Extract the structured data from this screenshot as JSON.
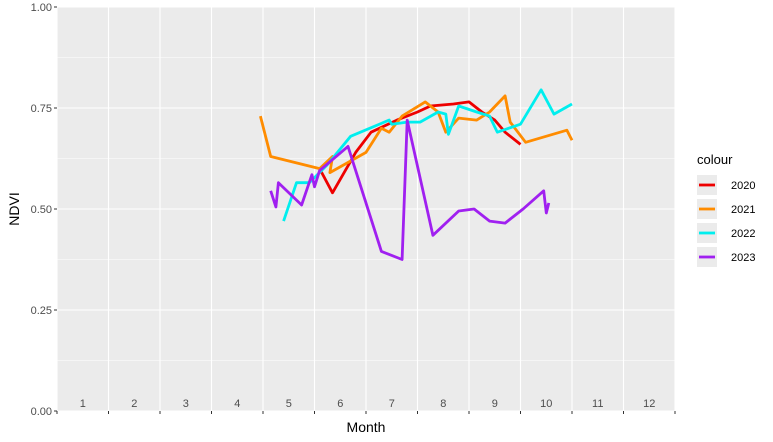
{
  "chart_data": {
    "type": "line",
    "title": "",
    "xlabel": "Month",
    "ylabel": "NDVI",
    "xlim": [
      0.5,
      12.5
    ],
    "ylim": [
      0,
      1
    ],
    "x_ticks": [
      "1",
      "2",
      "3",
      "4",
      "5",
      "6",
      "7",
      "8",
      "9",
      "10",
      "11",
      "12"
    ],
    "y_ticks": [
      "0.00",
      "0.25",
      "0.50",
      "0.75",
      "1.00"
    ],
    "grid": true,
    "legend": {
      "title": "colour",
      "position": "right"
    },
    "series": [
      {
        "name": "2020",
        "color": "#ee0000",
        "points": [
          [
            5.6,
            0.6
          ],
          [
            5.85,
            0.54
          ],
          [
            6.3,
            0.64
          ],
          [
            6.6,
            0.69
          ],
          [
            7.1,
            0.72
          ],
          [
            7.5,
            0.74
          ],
          [
            7.75,
            0.755
          ],
          [
            8.2,
            0.76
          ],
          [
            8.5,
            0.765
          ],
          [
            8.75,
            0.74
          ],
          [
            9.0,
            0.72
          ],
          [
            9.2,
            0.69
          ],
          [
            9.5,
            0.66
          ]
        ]
      },
      {
        "name": "2021",
        "color": "#ff8c00",
        "points": [
          [
            4.45,
            0.73
          ],
          [
            4.65,
            0.63
          ],
          [
            5.6,
            0.6
          ],
          [
            5.85,
            0.63
          ],
          [
            5.8,
            0.59
          ],
          [
            6.5,
            0.64
          ],
          [
            6.8,
            0.7
          ],
          [
            6.95,
            0.69
          ],
          [
            7.2,
            0.73
          ],
          [
            7.65,
            0.765
          ],
          [
            7.9,
            0.74
          ],
          [
            8.05,
            0.69
          ],
          [
            8.3,
            0.725
          ],
          [
            8.65,
            0.72
          ],
          [
            8.9,
            0.74
          ],
          [
            9.2,
            0.78
          ],
          [
            9.3,
            0.715
          ],
          [
            9.6,
            0.665
          ],
          [
            10.4,
            0.695
          ],
          [
            10.5,
            0.67
          ]
        ]
      },
      {
        "name": "2022",
        "color": "#00eeee",
        "points": [
          [
            4.9,
            0.47
          ],
          [
            5.15,
            0.565
          ],
          [
            5.4,
            0.565
          ],
          [
            5.75,
            0.61
          ],
          [
            6.2,
            0.68
          ],
          [
            6.95,
            0.72
          ],
          [
            7.0,
            0.71
          ],
          [
            7.3,
            0.715
          ],
          [
            7.55,
            0.715
          ],
          [
            7.9,
            0.74
          ],
          [
            8.05,
            0.735
          ],
          [
            8.1,
            0.685
          ],
          [
            8.3,
            0.755
          ],
          [
            8.65,
            0.74
          ],
          [
            8.9,
            0.73
          ],
          [
            9.05,
            0.69
          ],
          [
            9.5,
            0.71
          ],
          [
            9.9,
            0.795
          ],
          [
            10.15,
            0.735
          ],
          [
            10.5,
            0.76
          ]
        ]
      },
      {
        "name": "2023",
        "color": "#a020f0",
        "points": [
          [
            4.65,
            0.545
          ],
          [
            4.75,
            0.505
          ],
          [
            4.8,
            0.565
          ],
          [
            5.25,
            0.51
          ],
          [
            5.45,
            0.585
          ],
          [
            5.5,
            0.555
          ],
          [
            5.6,
            0.595
          ],
          [
            6.15,
            0.655
          ],
          [
            6.8,
            0.395
          ],
          [
            7.2,
            0.375
          ],
          [
            7.3,
            0.72
          ],
          [
            7.8,
            0.435
          ],
          [
            8.3,
            0.495
          ],
          [
            8.6,
            0.5
          ],
          [
            8.9,
            0.47
          ],
          [
            9.2,
            0.465
          ],
          [
            9.55,
            0.5
          ],
          [
            9.95,
            0.545
          ],
          [
            10.0,
            0.49
          ],
          [
            10.05,
            0.515
          ]
        ]
      }
    ]
  }
}
